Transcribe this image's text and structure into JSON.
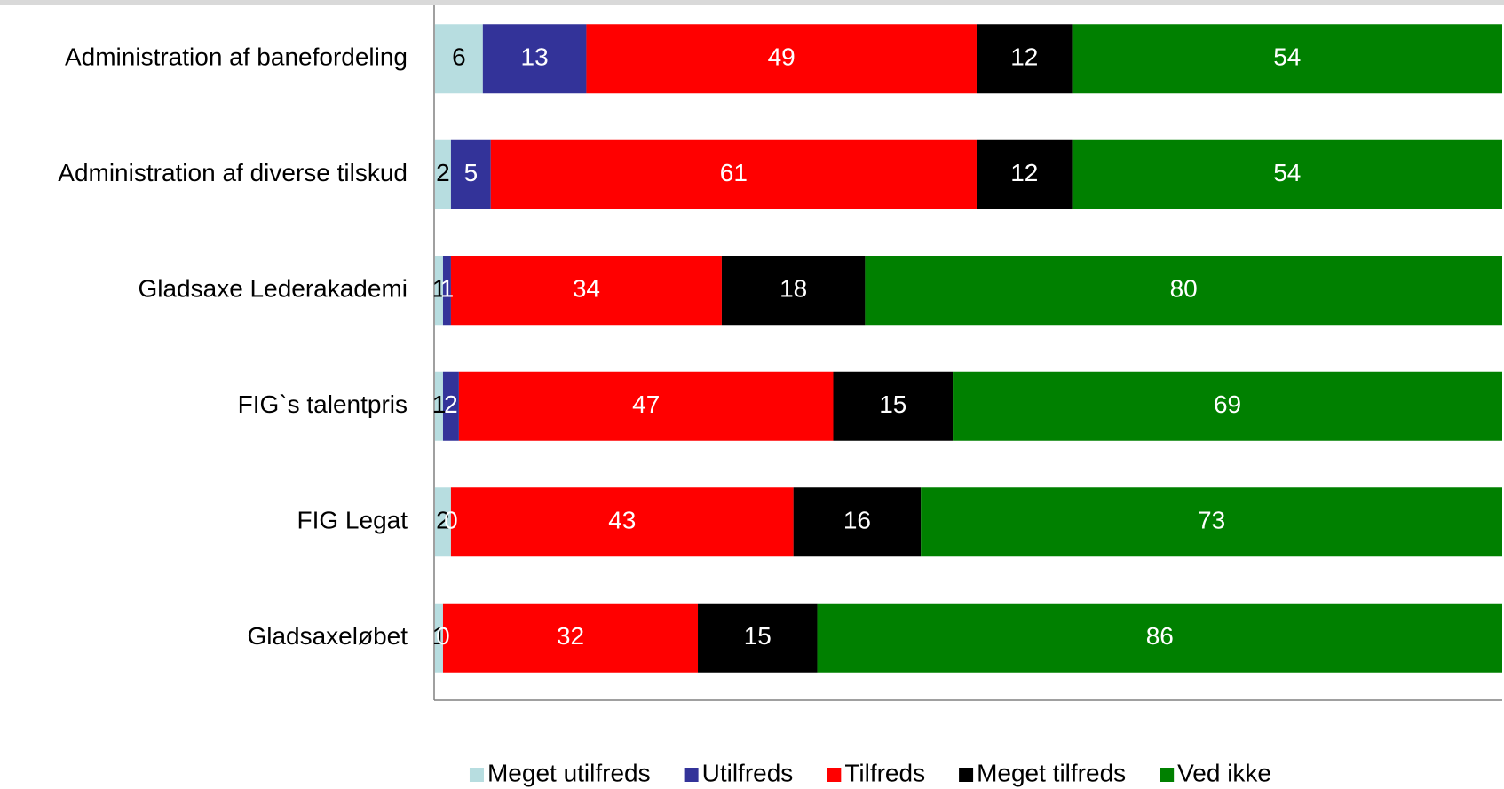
{
  "chart_data": {
    "type": "stacked-bar-horizontal",
    "categories": [
      "Administration af banefordeling",
      "Administration af diverse tilskud",
      "Gladsaxe Lederakademi",
      "FIG`s talentpris",
      "FIG Legat",
      "Gladsaxeløbet"
    ],
    "series": [
      {
        "name": "Meget utilfreds",
        "color": "#b7dde0",
        "values": [
          6,
          2,
          1,
          1,
          2,
          1
        ]
      },
      {
        "name": "Utilfreds",
        "color": "#333399",
        "values": [
          13,
          5,
          1,
          2,
          0,
          0
        ]
      },
      {
        "name": "Tilfreds",
        "color": "#ff0000",
        "values": [
          49,
          61,
          34,
          47,
          43,
          32
        ]
      },
      {
        "name": "Meget tilfreds",
        "color": "#000000",
        "values": [
          12,
          12,
          18,
          15,
          16,
          15
        ]
      },
      {
        "name": "Ved ikke",
        "color": "#008000",
        "values": [
          54,
          54,
          80,
          69,
          73,
          86
        ]
      }
    ],
    "legend": "bottom"
  }
}
